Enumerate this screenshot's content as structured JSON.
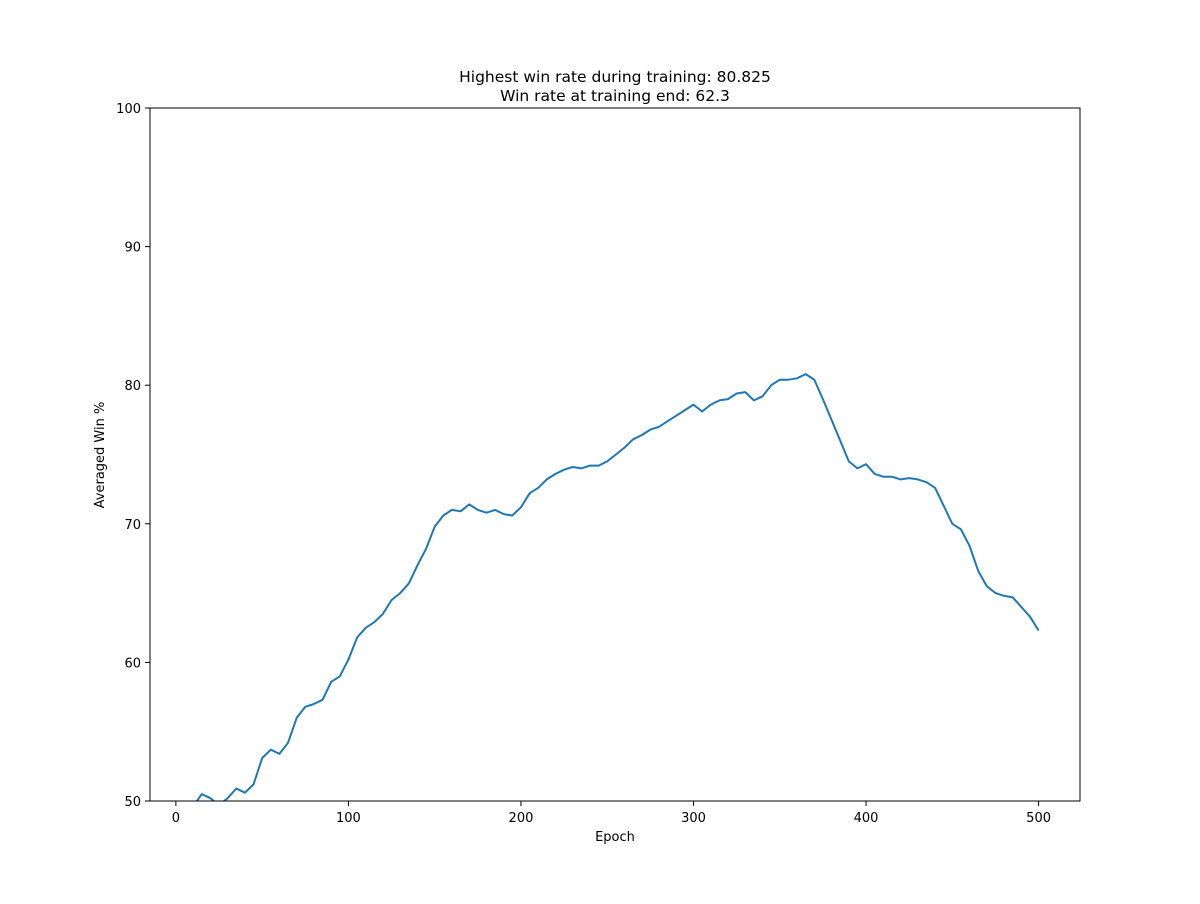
{
  "chart_data": {
    "type": "line",
    "title": "Highest win rate during training: 80.825",
    "subtitle": "Win rate at training end: 62.3",
    "xlabel": "Epoch",
    "ylabel": "Averaged Win %",
    "xlim": [
      -15,
      524
    ],
    "ylim": [
      50,
      100
    ],
    "xticks": [
      0,
      100,
      200,
      300,
      400,
      500
    ],
    "yticks": [
      50,
      60,
      70,
      80,
      90,
      100
    ],
    "grid": false,
    "line_color": "#1f77b4",
    "x": [
      10,
      15,
      20,
      25,
      30,
      35,
      40,
      45,
      50,
      55,
      60,
      65,
      70,
      75,
      80,
      85,
      90,
      95,
      100,
      105,
      110,
      115,
      120,
      125,
      130,
      135,
      140,
      145,
      150,
      155,
      160,
      165,
      170,
      175,
      180,
      185,
      190,
      195,
      200,
      205,
      210,
      215,
      220,
      225,
      230,
      235,
      240,
      245,
      250,
      255,
      260,
      265,
      270,
      275,
      280,
      285,
      290,
      295,
      300,
      305,
      310,
      315,
      320,
      325,
      330,
      335,
      340,
      345,
      350,
      355,
      360,
      365,
      370,
      375,
      380,
      385,
      390,
      395,
      400,
      405,
      410,
      415,
      420,
      425,
      430,
      435,
      440,
      445,
      450,
      455,
      460,
      465,
      470,
      475,
      480,
      485,
      490,
      495,
      500
    ],
    "y": [
      49.6,
      50.5,
      50.2,
      49.7,
      50.2,
      50.9,
      50.6,
      51.2,
      53.1,
      53.7,
      53.4,
      54.2,
      56.0,
      56.8,
      57.0,
      57.3,
      58.6,
      59.0,
      60.2,
      61.8,
      62.5,
      62.9,
      63.5,
      64.5,
      65.0,
      65.7,
      67.0,
      68.2,
      69.8,
      70.6,
      71.0,
      70.9,
      71.4,
      71.0,
      70.8,
      71.0,
      70.7,
      70.6,
      71.2,
      72.2,
      72.6,
      73.2,
      73.6,
      73.9,
      74.1,
      74.0,
      74.2,
      74.2,
      74.5,
      75.0,
      75.5,
      76.1,
      76.4,
      76.8,
      77.0,
      77.4,
      77.8,
      78.2,
      78.6,
      78.1,
      78.6,
      78.9,
      79.0,
      79.4,
      79.5,
      78.9,
      79.2,
      80.0,
      80.4,
      80.4,
      80.5,
      80.8,
      80.4,
      79.0,
      77.5,
      76.0,
      74.5,
      74.0,
      74.3,
      73.6,
      73.4,
      73.4,
      73.2,
      73.3,
      73.2,
      73.0,
      72.6,
      71.3,
      70.0,
      69.6,
      68.4,
      66.6,
      65.5,
      65.0,
      64.8,
      64.7,
      64.0,
      63.3,
      62.3
    ]
  }
}
